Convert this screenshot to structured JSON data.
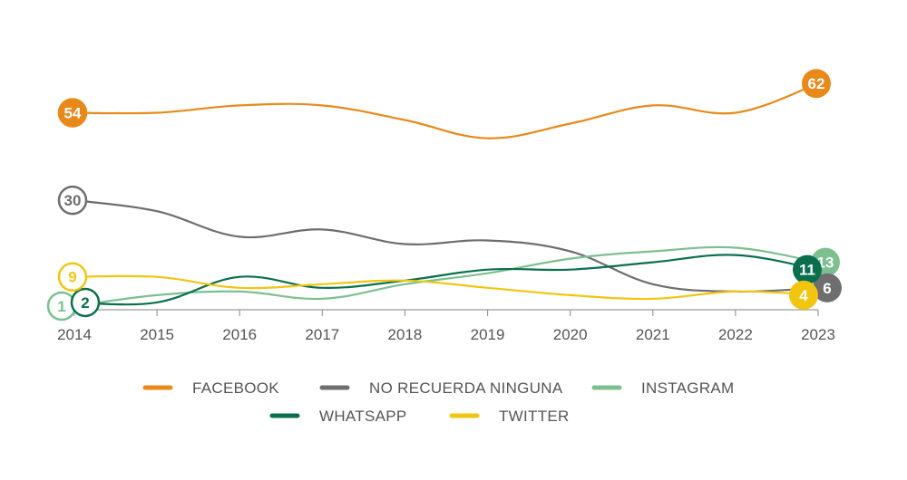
{
  "chart_data": {
    "type": "line",
    "title": "",
    "xlabel": "",
    "ylabel": "",
    "ylim": [
      0,
      70
    ],
    "grid": false,
    "legend_position": "bottom",
    "categories": [
      "2014",
      "2015",
      "2016",
      "2017",
      "2018",
      "2019",
      "2020",
      "2021",
      "2022",
      "2023"
    ],
    "series": [
      {
        "name": "FACEBOOK",
        "color": "#E8891A",
        "values": [
          54,
          54,
          56,
          56,
          52,
          47,
          51,
          56,
          54,
          62
        ],
        "start_label": "54",
        "end_label": "62",
        "start_marker": "filled",
        "end_marker": "filled"
      },
      {
        "name": "NO RECUERDA NINGUNA",
        "color": "#6E6E6E",
        "values": [
          30,
          27,
          20,
          22,
          18,
          19,
          16,
          7,
          5,
          6
        ],
        "start_label": "30",
        "end_label": "6",
        "start_marker": "outline",
        "end_marker": "filled"
      },
      {
        "name": "INSTAGRAM",
        "color": "#7CC08F",
        "values": [
          1,
          4,
          5,
          3,
          7,
          10,
          14,
          16,
          17,
          13
        ],
        "start_label": "1",
        "end_label": "13",
        "start_marker": "outline",
        "end_marker": "filled"
      },
      {
        "name": "WHATSAPP",
        "color": "#0B6F4E",
        "values": [
          2,
          2,
          9,
          6,
          8,
          11,
          11,
          13,
          15,
          11
        ],
        "start_label": "2",
        "end_label": "11",
        "start_marker": "outline",
        "end_marker": "filled"
      },
      {
        "name": "TWITTER",
        "color": "#F2C511",
        "values": [
          9,
          9,
          6,
          7,
          8,
          6,
          4,
          3,
          5,
          4
        ],
        "start_label": "9",
        "end_label": "4",
        "start_marker": "outline",
        "end_marker": "filled"
      }
    ]
  }
}
